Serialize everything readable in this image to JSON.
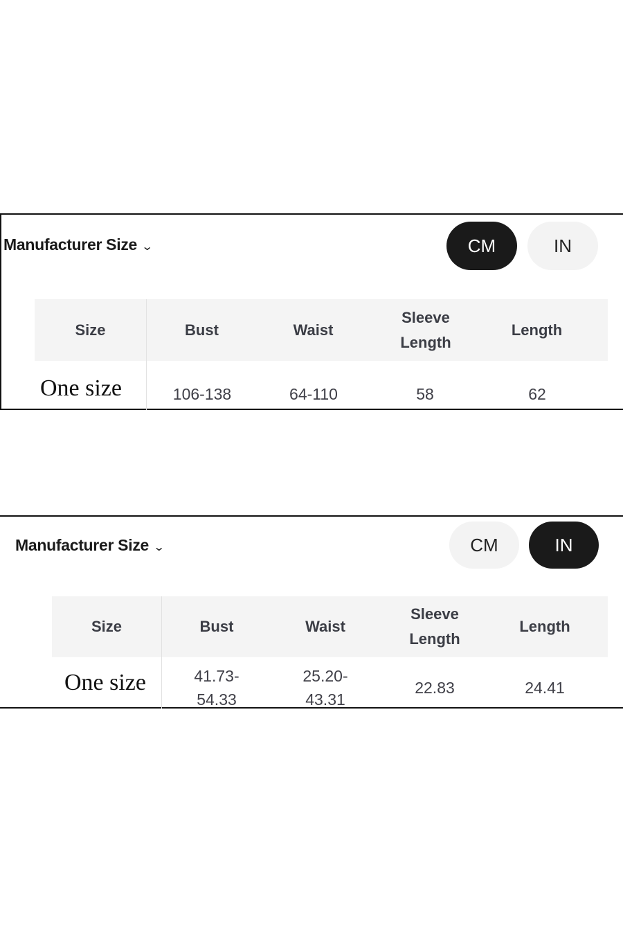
{
  "charts": [
    {
      "title": "Manufacturer Size",
      "units": {
        "cm": "CM",
        "in": "IN",
        "selected": "CM"
      },
      "headers": [
        "Size",
        "Bust",
        "Waist",
        "Sleeve Length",
        "Length"
      ],
      "row": [
        "One size",
        "106-138",
        "64-110",
        "58",
        "62"
      ]
    },
    {
      "title": "Manufacturer Size",
      "units": {
        "cm": "CM",
        "in": "IN",
        "selected": "IN"
      },
      "headers": [
        "Size",
        "Bust",
        "Waist",
        "Sleeve Length",
        "Length"
      ],
      "row": [
        "One size",
        "41.73-54.33",
        "25.20-43.31",
        "22.83",
        "24.41"
      ]
    }
  ],
  "colors": {
    "selected_toggle": "#1a1a1a",
    "unselected_toggle": "#f3f3f3",
    "header_bg": "#f4f4f4"
  }
}
